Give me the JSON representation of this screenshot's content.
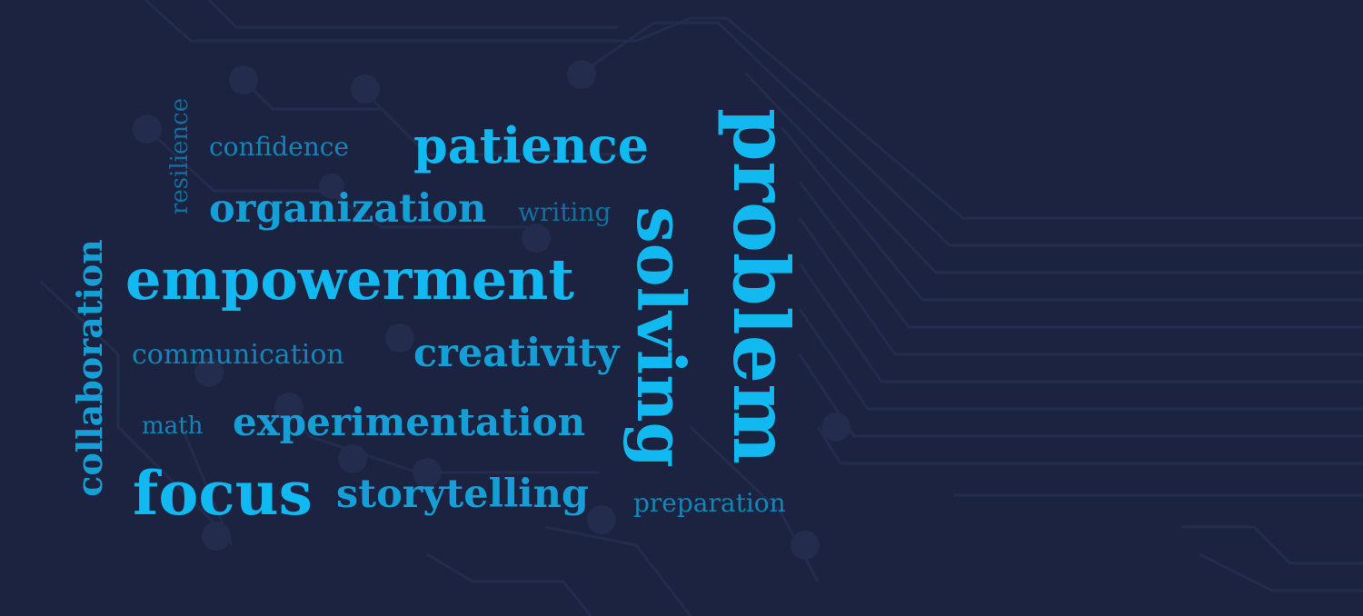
{
  "word_cloud": {
    "background": "#1b2340",
    "accent_colors": [
      "#12b8f0",
      "#159fd6",
      "#1585b8",
      "#146f9e"
    ],
    "words": {
      "problem": "problem",
      "solving": "solving",
      "empowerment": "empowerment",
      "patience": "patience",
      "focus": "focus",
      "organization": "organization",
      "creativity": "creativity",
      "experimentation": "experimentation",
      "storytelling": "storytelling",
      "collaboration": "collaboration",
      "communication": "communication",
      "confidence": "confidence",
      "resilience": "resilience",
      "writing": "writing",
      "math": "math",
      "preparation": "preparation"
    }
  }
}
